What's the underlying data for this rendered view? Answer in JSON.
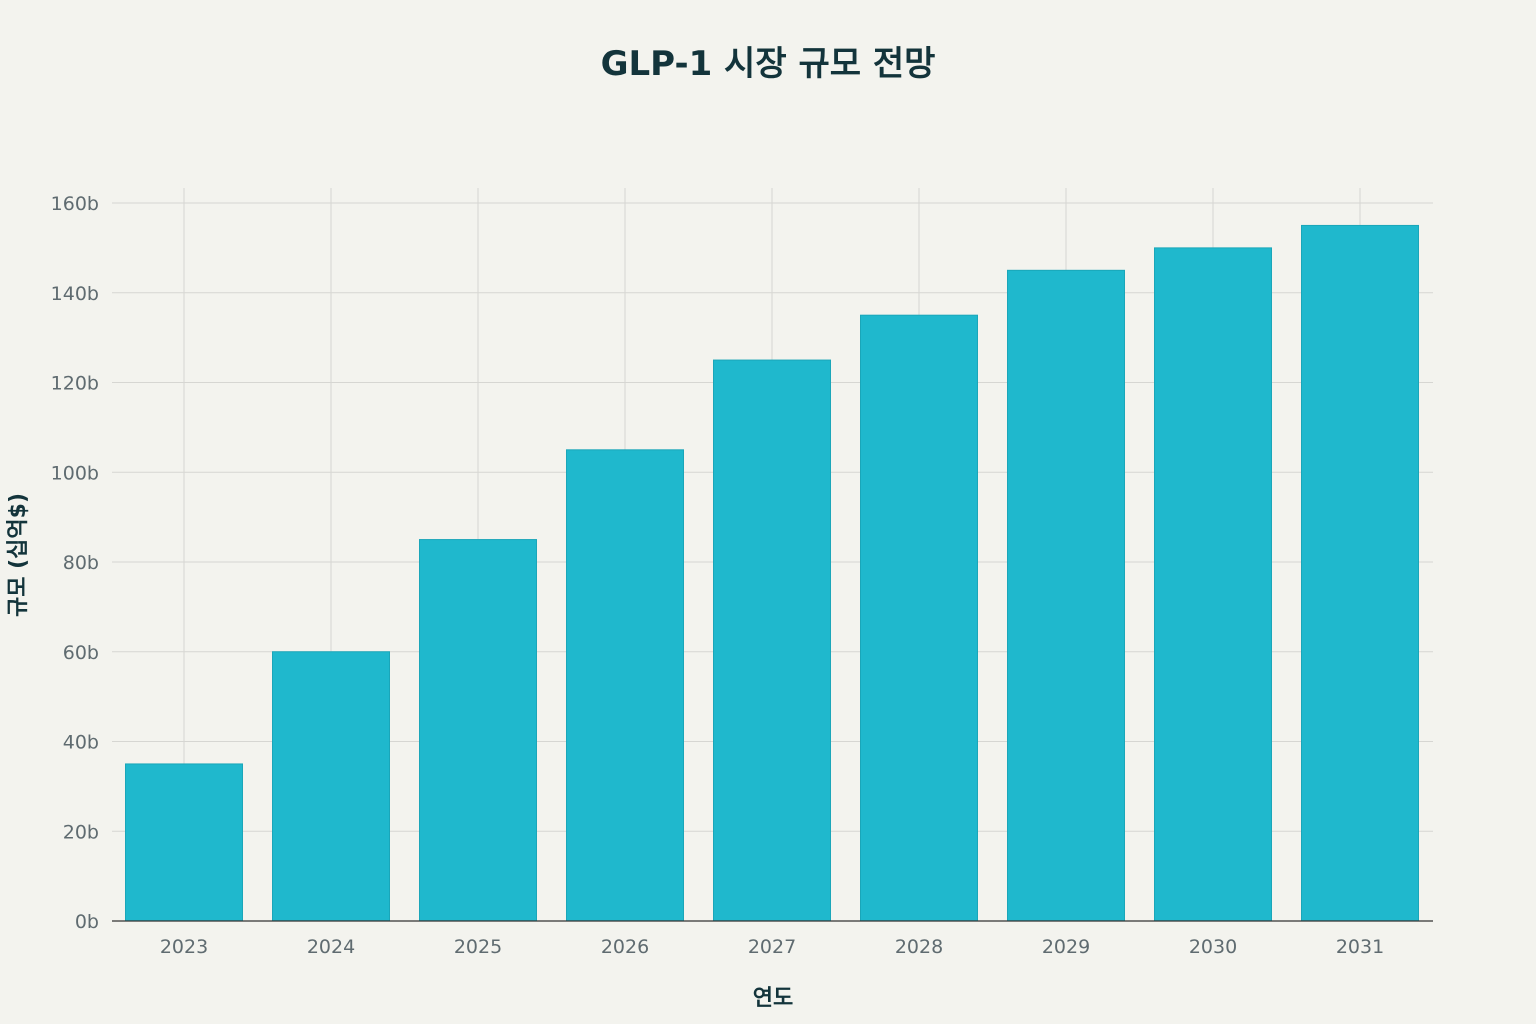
{
  "chart_data": {
    "type": "bar",
    "title": "GLP-1 시장 규모 전망",
    "xlabel": "연도",
    "ylabel": "규모 (십억$)",
    "categories": [
      "2023",
      "2024",
      "2025",
      "2026",
      "2027",
      "2028",
      "2029",
      "2030",
      "2031"
    ],
    "values": [
      35,
      60,
      85,
      105,
      125,
      135,
      145,
      150,
      155
    ],
    "ylim": [
      0,
      160
    ],
    "yticks": [
      0,
      20,
      40,
      60,
      80,
      100,
      120,
      140,
      160
    ],
    "ytick_suffix": "b",
    "grid": true,
    "bar_color": "#1fb8cd"
  }
}
